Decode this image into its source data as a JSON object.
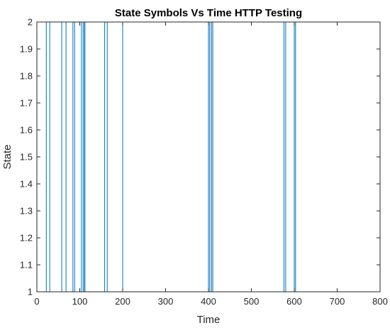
{
  "chart_data": {
    "type": "line",
    "title": "State Symbols Vs Time HTTP Testing",
    "xlabel": "Time",
    "ylabel": "State",
    "xlim": [
      0,
      800
    ],
    "ylim": [
      1,
      2
    ],
    "xticks": [
      0,
      100,
      200,
      300,
      400,
      500,
      600,
      700,
      800
    ],
    "yticks": [
      1,
      1.1,
      1.2,
      1.3,
      1.4,
      1.5,
      1.6,
      1.7,
      1.8,
      1.9,
      2
    ],
    "grid": false,
    "line_color": "#0072BD",
    "series": [
      {
        "x": [
          0,
          22,
          22,
          30,
          30,
          58,
          58,
          68,
          68,
          84,
          84,
          88,
          88,
          104,
          104,
          108,
          108,
          111,
          111,
          112,
          112,
          158,
          158,
          164,
          164,
          200,
          200,
          400,
          400,
          403,
          403,
          407,
          407,
          410,
          410,
          576,
          576,
          580,
          580,
          600,
          600,
          603,
          603,
          782
        ],
        "y": [
          1,
          1,
          2,
          2,
          1,
          1,
          2,
          2,
          1,
          1,
          2,
          2,
          1,
          1,
          2,
          2,
          1,
          1,
          2,
          2,
          1,
          1,
          2,
          2,
          1,
          1,
          2,
          2,
          1,
          1,
          2,
          2,
          1,
          1,
          2,
          2,
          1,
          1,
          2,
          2,
          1,
          1,
          2,
          2
        ]
      }
    ]
  }
}
